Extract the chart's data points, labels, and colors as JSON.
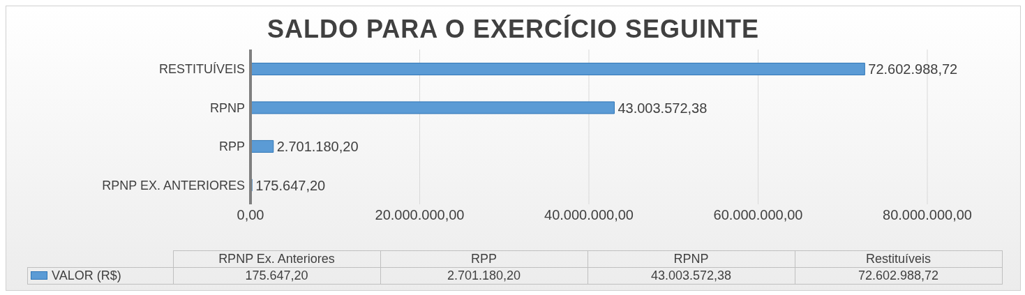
{
  "chart_data": {
    "type": "bar",
    "orientation": "horizontal",
    "title": "SALDO PARA O EXERCÍCIO SEGUINTE",
    "categories": [
      "RESTITUÍVEIS",
      "RPNP",
      "RPP",
      "RPNP EX. ANTERIORES"
    ],
    "series": [
      {
        "name": "VALOR (R$)",
        "color": "#5b9bd5",
        "values": [
          72602988.72,
          43003572.38,
          2701180.2,
          175647.2
        ],
        "value_labels": [
          "72.602.988,72",
          "43.003.572,38",
          "2.701.180,20",
          "175.647,20"
        ]
      }
    ],
    "xlim": [
      0,
      80000000
    ],
    "xticks": [
      {
        "value": 0,
        "label": "0,00"
      },
      {
        "value": 20000000,
        "label": "20.000.000,00"
      },
      {
        "value": 40000000,
        "label": "40.000.000,00"
      },
      {
        "value": 60000000,
        "label": "60.000.000,00"
      },
      {
        "value": 80000000,
        "label": "80.000.000,00"
      }
    ],
    "grid": "x",
    "legend": "bottom",
    "annotations": [
      "RPNP Ex. Anteriores",
      "RPP",
      "RPNP",
      "Restituíveis"
    ]
  }
}
